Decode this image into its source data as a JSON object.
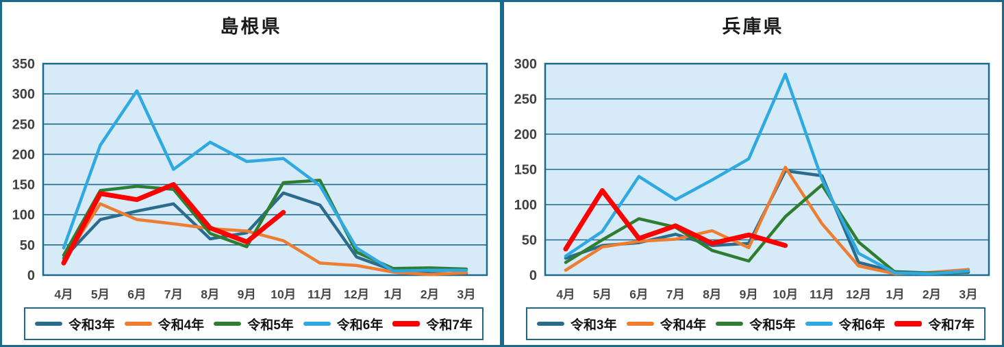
{
  "styles": {
    "plot_bg": "#D6EBF7",
    "grid": "#1B6A8A",
    "border": "#1B6A8A",
    "axis_label_color": "#404040",
    "month_label_color": "#44484C",
    "title_color": "#1A1A1A",
    "legend_border": "#1B6A8A",
    "background": "#FFFFFF"
  },
  "chart_data": [
    {
      "type": "line",
      "title": "島根県",
      "y_axis": {
        "max": 350,
        "tick_step": 50,
        "tick_labels": [
          "0",
          "50",
          "100",
          "150",
          "200",
          "250",
          "300",
          "350"
        ]
      },
      "months": [
        "4月",
        "5月",
        "6月",
        "7月",
        "8月",
        "9月",
        "10月",
        "11月",
        "12月",
        "1月",
        "2月",
        "3月"
      ],
      "legend_position": "bottom",
      "series": [
        {
          "name": "令和3年",
          "color": "#2B6B8E",
          "line_width": 4.5,
          "values": [
            28,
            92,
            106,
            118,
            60,
            70,
            136,
            116,
            30,
            8,
            3,
            2
          ]
        },
        {
          "name": "令和4年",
          "color": "#ED7D31",
          "line_width": 4.5,
          "values": [
            24,
            118,
            92,
            85,
            77,
            73,
            57,
            20,
            16,
            5,
            1,
            4
          ]
        },
        {
          "name": "令和5年",
          "color": "#2E7D32",
          "line_width": 4.5,
          "values": [
            33,
            140,
            147,
            142,
            69,
            47,
            153,
            157,
            38,
            11,
            12,
            10
          ]
        },
        {
          "name": "令和6年",
          "color": "#2FA9E0",
          "line_width": 4.5,
          "values": [
            45,
            215,
            305,
            175,
            220,
            188,
            193,
            148,
            45,
            7,
            8,
            8
          ]
        },
        {
          "name": "令和7年",
          "color": "#FF0000",
          "line_width": 7,
          "values": [
            20,
            135,
            125,
            150,
            78,
            55,
            104,
            null,
            null,
            null,
            null,
            null
          ]
        }
      ]
    },
    {
      "type": "line",
      "title": "兵庫県",
      "y_axis": {
        "max": 300,
        "tick_step": 50,
        "tick_labels": [
          "0",
          "50",
          "100",
          "150",
          "200",
          "250",
          "300"
        ]
      },
      "months": [
        "4月",
        "5月",
        "6月",
        "7月",
        "8月",
        "9月",
        "10月",
        "11月",
        "12月",
        "1月",
        "2月",
        "3月"
      ],
      "legend_position": "bottom",
      "series": [
        {
          "name": "令和3年",
          "color": "#2B6B8E",
          "line_width": 4.5,
          "values": [
            24,
            42,
            46,
            58,
            42,
            45,
            148,
            141,
            18,
            5,
            3,
            4
          ]
        },
        {
          "name": "令和4年",
          "color": "#ED7D31",
          "line_width": 4.5,
          "values": [
            7,
            40,
            48,
            51,
            63,
            39,
            153,
            73,
            13,
            2,
            4,
            8
          ]
        },
        {
          "name": "令和5年",
          "color": "#2E7D32",
          "line_width": 4.5,
          "values": [
            18,
            50,
            80,
            68,
            35,
            20,
            83,
            128,
            47,
            4,
            3,
            5
          ]
        },
        {
          "name": "令和6年",
          "color": "#2FA9E0",
          "line_width": 4.5,
          "values": [
            27,
            62,
            140,
            107,
            135,
            165,
            285,
            136,
            31,
            3,
            2,
            6
          ]
        },
        {
          "name": "令和7年",
          "color": "#FF0000",
          "line_width": 7,
          "values": [
            37,
            120,
            52,
            70,
            45,
            57,
            42,
            null,
            null,
            null,
            null,
            null
          ]
        }
      ]
    }
  ]
}
